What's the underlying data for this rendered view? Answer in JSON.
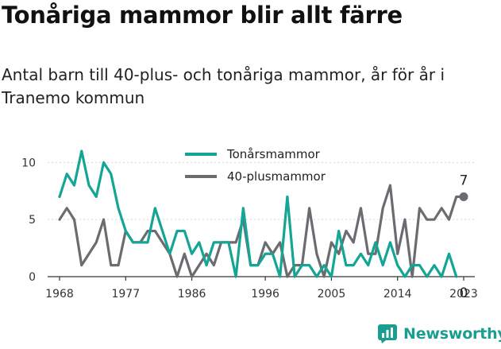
{
  "title": "Tonåriga mammor blir allt färre",
  "subtitle": "Antal barn till 40-plus- och tonåriga mammor, år för år i Tranemo kommun",
  "brand": {
    "name": "Newsworthy",
    "icon": "newsworthy-logo-icon",
    "color": "#1a9e8f"
  },
  "chart_data": {
    "type": "line",
    "x": [
      1968,
      1969,
      1970,
      1971,
      1972,
      1973,
      1974,
      1975,
      1976,
      1977,
      1978,
      1979,
      1980,
      1981,
      1982,
      1983,
      1984,
      1985,
      1986,
      1987,
      1988,
      1989,
      1990,
      1991,
      1992,
      1993,
      1994,
      1995,
      1996,
      1997,
      1998,
      1999,
      2000,
      2001,
      2002,
      2003,
      2004,
      2005,
      2006,
      2007,
      2008,
      2009,
      2010,
      2011,
      2012,
      2013,
      2014,
      2015,
      2016,
      2017,
      2018,
      2019,
      2020,
      2021,
      2022,
      2023
    ],
    "series": [
      {
        "name": "Tonårsmammor",
        "color": "#14a594",
        "values": [
          7,
          9,
          8,
          11,
          8,
          7,
          10,
          9,
          6,
          4,
          3,
          3,
          3,
          6,
          4,
          2,
          4,
          4,
          2,
          3,
          1,
          3,
          3,
          3,
          0,
          6,
          1,
          1,
          2,
          2,
          0,
          7,
          0,
          1,
          1,
          0,
          1,
          0,
          4,
          1,
          1,
          2,
          1,
          3,
          1,
          3,
          1,
          0,
          1,
          1,
          0,
          1,
          0,
          2,
          0,
          null
        ]
      },
      {
        "name": "40-plusmammor",
        "color": "#6b6b70",
        "values": [
          5,
          6,
          5,
          1,
          2,
          3,
          5,
          1,
          1,
          4,
          3,
          3,
          4,
          4,
          3,
          2,
          0,
          2,
          0,
          1,
          2,
          1,
          3,
          3,
          3,
          5,
          1,
          1,
          3,
          2,
          3,
          0,
          1,
          1,
          6,
          2,
          0,
          3,
          2,
          4,
          3,
          6,
          2,
          2,
          6,
          8,
          2,
          5,
          0,
          6,
          5,
          5,
          6,
          5,
          7,
          7
        ]
      }
    ],
    "end_labels": [
      {
        "series": "40-plusmammor",
        "x": 2023,
        "value": 7,
        "text": "7"
      },
      {
        "series": "Tonårsmammor",
        "x": 2023,
        "value": 0,
        "text": "0"
      }
    ],
    "xticks": [
      1968,
      1977,
      1986,
      1996,
      2005,
      2014,
      2023
    ],
    "yticks": [
      0,
      5,
      10
    ],
    "xlim": [
      1968,
      2023
    ],
    "ylim": [
      0,
      11
    ],
    "legend": "top-center",
    "grid": "horizontal",
    "xlabel": "",
    "ylabel": ""
  }
}
